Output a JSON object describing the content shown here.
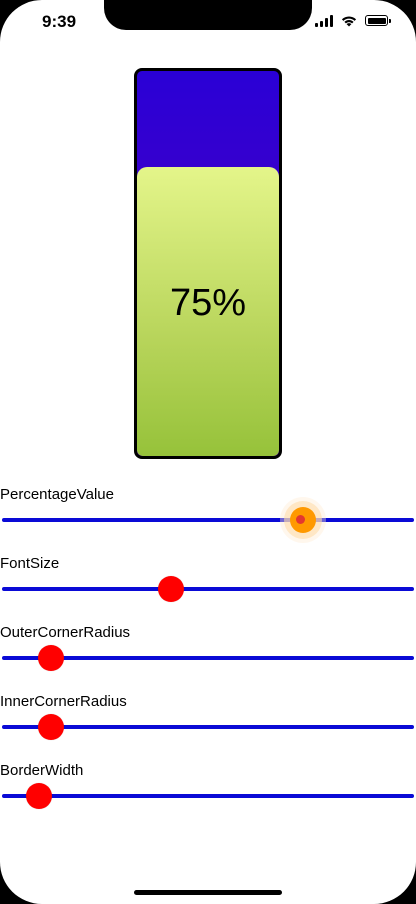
{
  "status_bar": {
    "time": "9:39"
  },
  "gauge": {
    "value_text": "75%",
    "value": 0.75,
    "outer_color": "#3a00cf",
    "fill_color_top": "#e4f58a",
    "fill_color_bottom": "#96c23a"
  },
  "controls": [
    {
      "label": "PercentageValue",
      "value": 0.73,
      "active": true
    },
    {
      "label": "FontSize",
      "value": 0.41,
      "active": false
    },
    {
      "label": "OuterCornerRadius",
      "value": 0.12,
      "active": false
    },
    {
      "label": "InnerCornerRadius",
      "value": 0.12,
      "active": false
    },
    {
      "label": "BorderWidth",
      "value": 0.09,
      "active": false
    }
  ],
  "colors": {
    "track": "#0a0ad6",
    "thumb": "#ff0000",
    "thumb_active": "#ff9900"
  }
}
